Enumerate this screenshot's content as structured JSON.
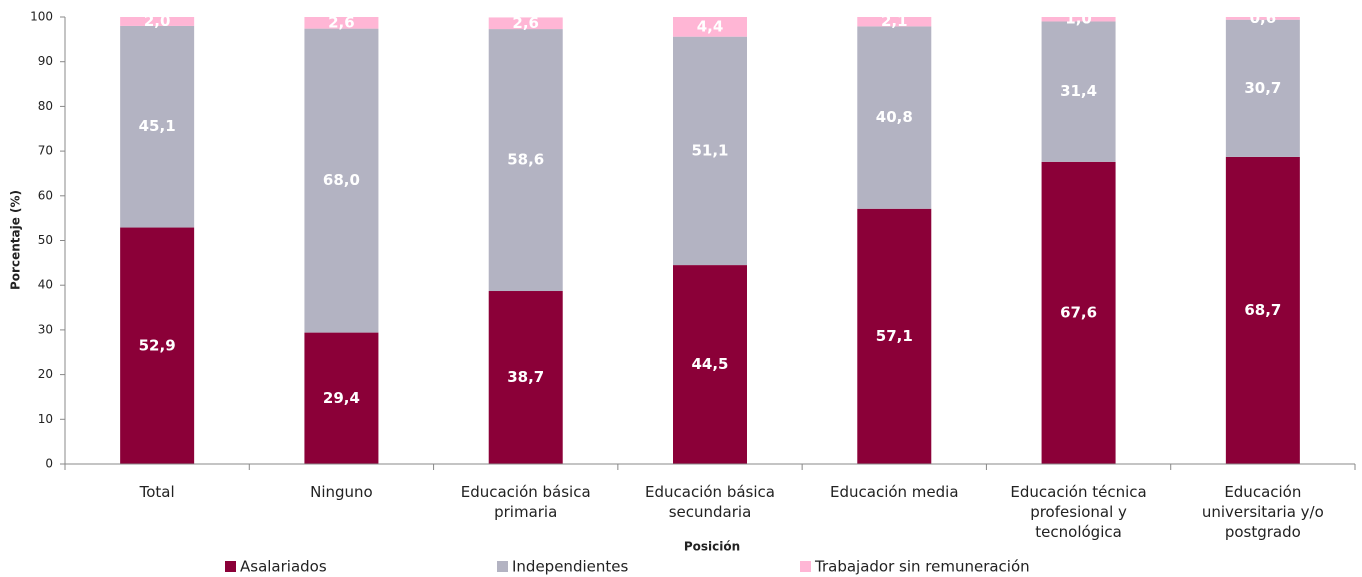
{
  "chart_data": {
    "type": "stacked_bar",
    "categories": [
      "Total",
      "Ninguno",
      "Educación básica primaria",
      "Educación básica secundaria",
      "Educación media",
      "Educación técnica profesional y tecnológica",
      "Educación universitaria y/o postgrado"
    ],
    "series": [
      {
        "name": "Asalariados",
        "color": "#8b0038",
        "values": [
          52.9,
          29.4,
          38.7,
          44.5,
          57.1,
          67.6,
          68.7
        ],
        "value_labels": [
          "52,9",
          "29,4",
          "38,7",
          "44,5",
          "57,1",
          "67,6",
          "68,7"
        ]
      },
      {
        "name": "Independientes",
        "color": "#b3b3c2",
        "values": [
          45.1,
          68.0,
          58.6,
          51.1,
          40.8,
          31.4,
          30.7
        ],
        "value_labels": [
          "45,1",
          "68,0",
          "58,6",
          "51,1",
          "40,8",
          "31,4",
          "30,7"
        ]
      },
      {
        "name": "Trabajador sin remuneración",
        "color": "#ffb6d5",
        "values": [
          2.0,
          2.6,
          2.6,
          4.4,
          2.1,
          1.0,
          0.6
        ],
        "value_labels": [
          "2,0",
          "2,6",
          "2,6",
          "4,4",
          "2,1",
          "1,0",
          "0,6"
        ]
      }
    ],
    "xlabel": "Posición",
    "ylabel": "Porcentaje  (%)",
    "ylim": [
      0,
      100
    ],
    "yticks": [
      0,
      10,
      20,
      30,
      40,
      50,
      60,
      70,
      80,
      90,
      100
    ],
    "grid": false,
    "legend": "bottom"
  }
}
